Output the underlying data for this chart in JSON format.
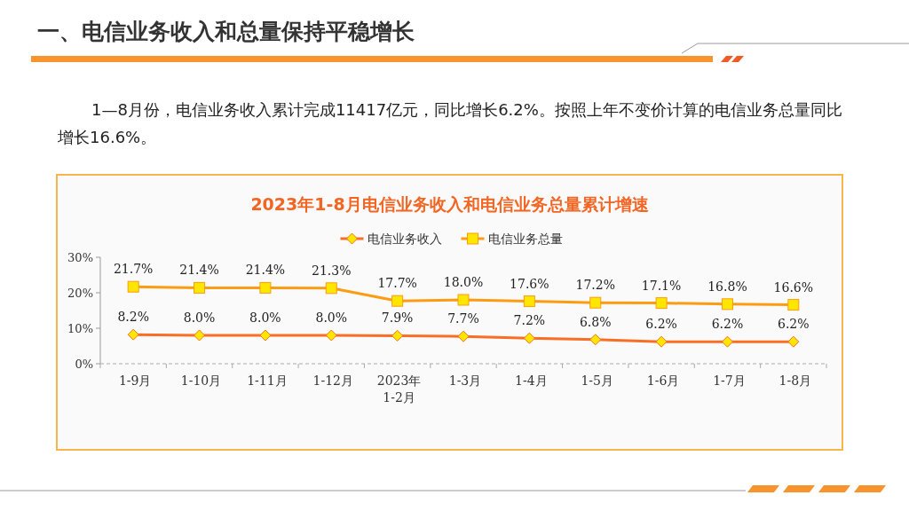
{
  "chart_data": {
    "type": "line",
    "title": "2023年1-8月电信业务收入和电信业务总量累计增速",
    "annotations": [
      "一、电信业务收入和总量保持平稳增长",
      "1—8月份，电信业务收入累计完成11417亿元，同比增长6.2%。按照上年不变价计算的电信业务总量同比增长16.6%。"
    ],
    "categories": [
      "1-9月",
      "1-10月",
      "1-11月",
      "1-12月",
      "2023年1-2月",
      "1-3月",
      "1-4月",
      "1-5月",
      "1-6月",
      "1-7月",
      "1-8月"
    ],
    "series": [
      {
        "name": "电信业务收入",
        "color": "#f96d24",
        "marker": "diamond",
        "values": [
          8.2,
          8.0,
          8.0,
          8.0,
          7.9,
          7.7,
          7.2,
          6.8,
          6.2,
          6.2,
          6.2
        ],
        "value_labels": [
          "8.2%",
          "8.0%",
          "8.0%",
          "8.0%",
          "7.9%",
          "7.7%",
          "7.2%",
          "6.8%",
          "6.2%",
          "6.2%",
          "6.2%"
        ]
      },
      {
        "name": "电信业务总量",
        "color": "#fd9b12",
        "marker": "square",
        "values": [
          21.7,
          21.4,
          21.4,
          21.3,
          17.7,
          18.0,
          17.6,
          17.2,
          17.1,
          16.8,
          16.6
        ],
        "value_labels": [
          "21.7%",
          "21.4%",
          "21.4%",
          "21.3%",
          "17.7%",
          "18.0%",
          "17.6%",
          "17.2%",
          "17.1%",
          "16.8%",
          "16.6%"
        ]
      }
    ],
    "ylim": [
      0,
      30
    ],
    "yticks": [
      {
        "value": 0,
        "label": "0%"
      },
      {
        "value": 10,
        "label": "10%"
      },
      {
        "value": 20,
        "label": "20%"
      },
      {
        "value": 30,
        "label": "30%"
      }
    ],
    "legend": "top",
    "line_style": "solid"
  }
}
